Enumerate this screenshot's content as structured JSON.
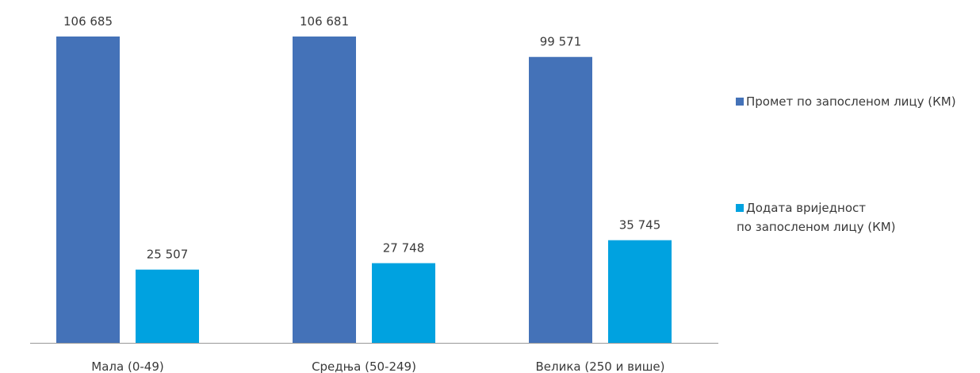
{
  "chart_data": {
    "type": "bar",
    "categories": [
      "Мала (0-49)",
      "Средња  (50-249)",
      "Велика (250 и више)"
    ],
    "series": [
      {
        "name": "Промет по запосленом лицу (КМ)",
        "name_lines": [
          "Промет по запосленом лицу (КМ)"
        ],
        "values": [
          106685,
          106681,
          99571
        ],
        "labels": [
          "106 685",
          "106 681",
          "99 571"
        ],
        "color": "#4472b8"
      },
      {
        "name": "Додата вриједност по запосленом лицу (КМ)",
        "name_lines": [
          "Додата вриједност",
          "по запосленом лицу (КМ)"
        ],
        "values": [
          25507,
          27748,
          35745
        ],
        "labels": [
          "25 507",
          "27 748",
          "35 745"
        ],
        "color": "#00a2e0"
      }
    ],
    "ylim": [
      0,
      106685
    ],
    "grid": false,
    "legend": "right",
    "axis_color": "#999999"
  }
}
